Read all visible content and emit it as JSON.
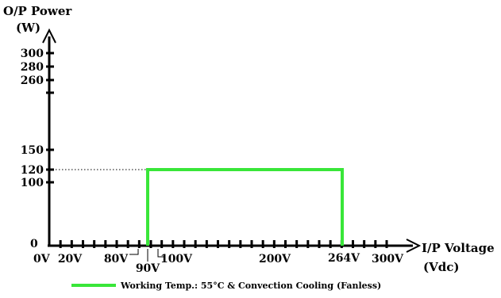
{
  "chart_data": {
    "type": "line",
    "ylabel_line1": "O/P Power",
    "ylabel_line2": "(W)",
    "xlabel_line1": "I/P Voltage",
    "xlabel_line2": "(Vdc)",
    "x_origin_label": "0V",
    "y_origin_label": "0",
    "y_ticks": [
      {
        "value": 100,
        "label": "100"
      },
      {
        "value": 120,
        "label": "120"
      },
      {
        "value": 150,
        "label": "150"
      },
      {
        "value": 260,
        "label": "260"
      },
      {
        "value": 280,
        "label": "280"
      },
      {
        "value": 300,
        "label": "300"
      }
    ],
    "x_ticks": [
      {
        "value": 20,
        "label": "20V"
      },
      {
        "value": 80,
        "label": "80V"
      },
      {
        "value": 90,
        "label": "90V"
      },
      {
        "value": 100,
        "label": "100V"
      },
      {
        "value": 200,
        "label": "200V"
      },
      {
        "value": 264,
        "label": "264V"
      },
      {
        "value": 300,
        "label": "300V"
      }
    ],
    "series": [
      {
        "name": "Working Temp.: 55°C & Convection Cooling (Fanless)",
        "color": "#39e639",
        "x": [
          90,
          90,
          264,
          264
        ],
        "y": [
          0,
          120,
          120,
          0
        ]
      }
    ],
    "reference_line": {
      "y": 120,
      "x_from": 0,
      "x_to": 90,
      "style": "dotted"
    },
    "grid": false,
    "legend_position": "bottom"
  }
}
